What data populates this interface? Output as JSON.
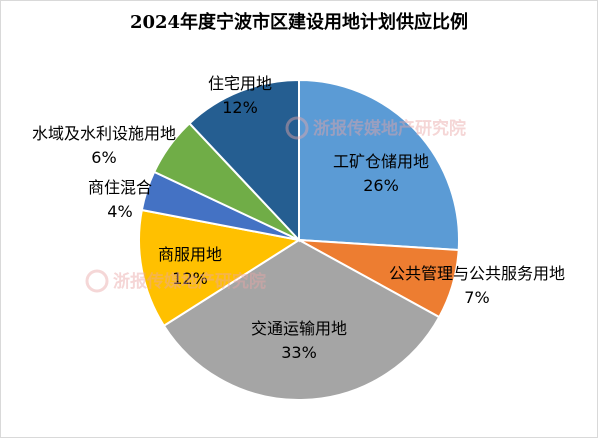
{
  "chart_data": {
    "type": "pie",
    "title": "2024年度宁波市区建设用地计划供应比例",
    "slices": [
      {
        "label": "工矿仓储用地",
        "pct_label": "26%",
        "value": 26,
        "color": "#5b9bd5"
      },
      {
        "label": "公共管理与公共服务用地",
        "pct_label": "7%",
        "value": 7,
        "color": "#ed7d31"
      },
      {
        "label": "交通运输用地",
        "pct_label": "33%",
        "value": 33,
        "color": "#a5a5a5"
      },
      {
        "label": "商服用地",
        "pct_label": "12%",
        "value": 12,
        "color": "#ffc000"
      },
      {
        "label": "商住混合",
        "pct_label": "4%",
        "value": 4,
        "color": "#4472c4"
      },
      {
        "label": "水域及水利设施用地",
        "pct_label": "6%",
        "value": 6,
        "color": "#70ad47"
      },
      {
        "label": "住宅用地",
        "pct_label": "12%",
        "value": 12,
        "color": "#255e91"
      }
    ],
    "start_angle_deg": 0,
    "direction": "clockwise",
    "legend": "none"
  },
  "watermark": {
    "text": "浙报传媒地产研究院"
  }
}
